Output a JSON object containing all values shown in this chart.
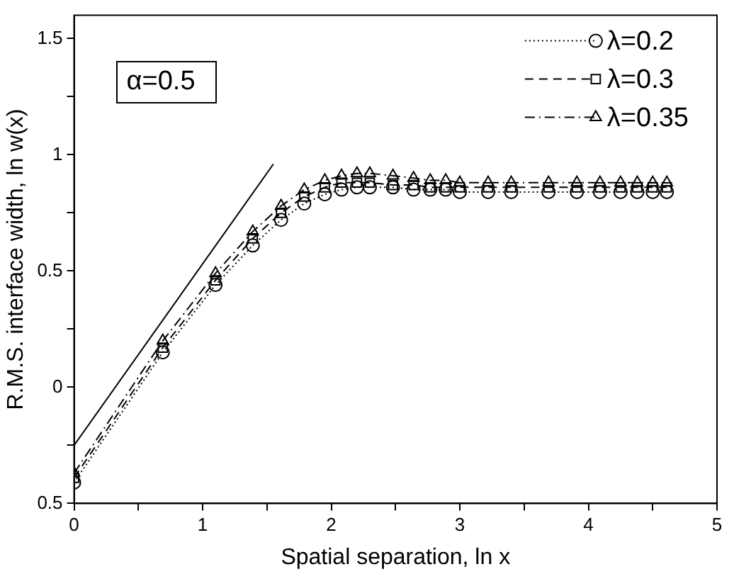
{
  "chart_data": {
    "type": "line",
    "xlabel": "Spatial separation, ln x",
    "ylabel": "R.M.S. interface width, ln w(x)",
    "annotations": [
      "α=0.5"
    ],
    "x": [
      0,
      0.69,
      1.1,
      1.39,
      1.61,
      1.79,
      1.95,
      2.08,
      2.2,
      2.3,
      2.48,
      2.64,
      2.77,
      2.89,
      3.0,
      3.22,
      3.4,
      3.69,
      3.91,
      4.09,
      4.25,
      4.38,
      4.5,
      4.61
    ],
    "series": [
      {
        "name": "λ=0.2",
        "color": "#000000",
        "marker": "circle",
        "line_style": "dotted",
        "values": [
          -0.41,
          0.15,
          0.44,
          0.61,
          0.72,
          0.79,
          0.83,
          0.85,
          0.86,
          0.86,
          0.86,
          0.85,
          0.85,
          0.85,
          0.84,
          0.84,
          0.84,
          0.84,
          0.84,
          0.84,
          0.84,
          0.84,
          0.84,
          0.84
        ]
      },
      {
        "name": "λ=0.3",
        "color": "#000000",
        "marker": "square",
        "line_style": "dashed",
        "values": [
          -0.39,
          0.17,
          0.46,
          0.64,
          0.75,
          0.82,
          0.86,
          0.88,
          0.88,
          0.88,
          0.87,
          0.87,
          0.86,
          0.86,
          0.86,
          0.86,
          0.86,
          0.86,
          0.86,
          0.86,
          0.86,
          0.86,
          0.86,
          0.86
        ]
      },
      {
        "name": "λ=0.35",
        "color": "#000000",
        "marker": "triangle",
        "line_style": "dashdot",
        "values": [
          -0.37,
          0.2,
          0.49,
          0.67,
          0.78,
          0.85,
          0.89,
          0.91,
          0.92,
          0.92,
          0.91,
          0.9,
          0.89,
          0.89,
          0.88,
          0.88,
          0.88,
          0.88,
          0.88,
          0.88,
          0.88,
          0.88,
          0.88,
          0.88
        ]
      },
      {
        "type": "line",
        "color": "#000000",
        "marker": "none",
        "line_style": "solid",
        "x": [
          0,
          1.55
        ],
        "values": [
          -0.25,
          0.96
        ]
      }
    ],
    "xlim": [
      0,
      5
    ],
    "xticks": [
      0,
      {
        "value": 0.5,
        "label": null
      },
      1,
      {
        "value": 1.5,
        "label": null
      },
      2,
      {
        "value": 2.5,
        "label": null
      },
      3,
      {
        "value": 3.5,
        "label": null
      },
      4,
      {
        "value": 4.5,
        "label": null
      },
      5
    ],
    "ylim": [
      -0.5,
      1.6
    ],
    "yticks": [
      {
        "value": -0.5,
        "label": "0.5"
      },
      {
        "value": -0.25,
        "label": null
      },
      0,
      {
        "value": 0.25,
        "label": null
      },
      0.5,
      {
        "value": 0.75,
        "label": null
      },
      1,
      {
        "value": 1.25,
        "label": null
      },
      1.5
    ],
    "grid": false,
    "legend": "top right"
  }
}
